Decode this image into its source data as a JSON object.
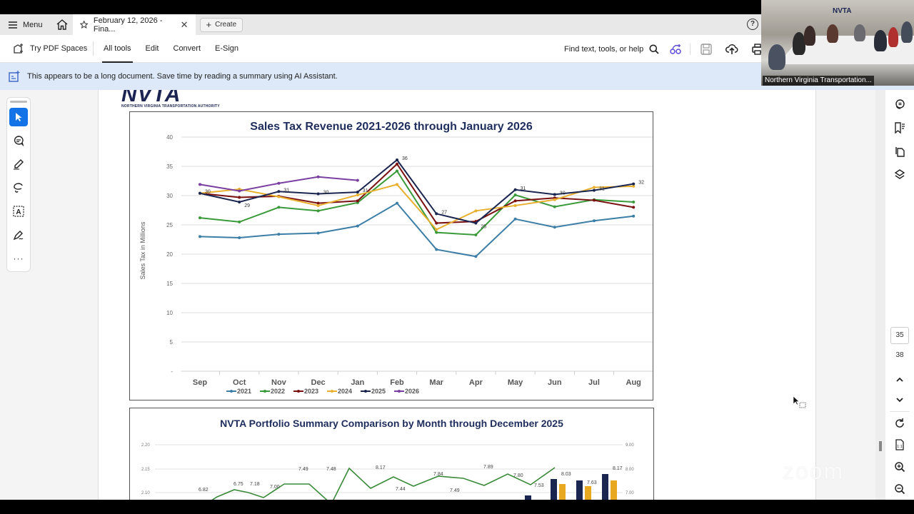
{
  "tabbar": {
    "menu_label": "Menu",
    "doc_tab_title": "February 12, 2026 - Fina...",
    "create_label": "Create",
    "help_glyph": "?"
  },
  "toolbar": {
    "try_spaces": "Try PDF Spaces",
    "tabs": [
      {
        "label": "All tools",
        "active": true
      },
      {
        "label": "Edit"
      },
      {
        "label": "Convert"
      },
      {
        "label": "E-Sign"
      }
    ],
    "find_label": "Find text, tools, or help"
  },
  "banner": {
    "text": "This appears to be a long document. Save time by reading a summary using AI Assistant."
  },
  "document": {
    "logo_text": "NVTA",
    "logo_subtitle": "NORTHERN VIRGINIA TRANSPORTATION AUTHORITY"
  },
  "page_nav": {
    "current_page": "35",
    "total_pages": "38"
  },
  "video": {
    "participant_label": "Northern Virginia Transportation...",
    "wall_logo": "NVTA"
  },
  "watermark": "zoom",
  "colors": {
    "2021": "#3d7ea6",
    "2022": "#3a9a3a",
    "2023": "#7a1010",
    "2024": "#e8b030",
    "2025": "#1a2550",
    "2026": "#7a3fa0",
    "accent": "#1473e6",
    "banner_bg": "#dde9f8"
  },
  "chart_data": [
    {
      "type": "line",
      "title": "Sales Tax Revenue 2021-2026 through January 2026",
      "xlabel": "",
      "ylabel": "Sales Tax in Millions",
      "ylim": [
        0,
        40
      ],
      "yticks": [
        "-",
        "5",
        "10",
        "15",
        "20",
        "25",
        "30",
        "35",
        "40"
      ],
      "grid": true,
      "legend_position": "bottom",
      "categories": [
        "Sep",
        "Oct",
        "Nov",
        "Dec",
        "Jan",
        "Feb",
        "Mar",
        "Apr",
        "May",
        "Jun",
        "Jul",
        "Aug"
      ],
      "series": [
        {
          "name": "2021",
          "values": [
            23.0,
            22.8,
            23.4,
            23.6,
            24.8,
            28.7,
            20.8,
            19.6,
            26.0,
            24.6,
            25.7,
            26.5
          ]
        },
        {
          "name": "2022",
          "values": [
            26.2,
            25.5,
            28.0,
            27.4,
            28.8,
            34.2,
            23.7,
            23.3,
            30.1,
            28.1,
            29.3,
            28.9
          ]
        },
        {
          "name": "2023",
          "values": [
            30.4,
            29.7,
            29.9,
            28.7,
            29.1,
            35.4,
            25.3,
            25.6,
            29.1,
            29.6,
            29.2,
            28.0
          ]
        },
        {
          "name": "2024",
          "values": [
            30.4,
            31.1,
            29.8,
            28.3,
            30.1,
            31.9,
            24.2,
            27.4,
            28.3,
            29.3,
            31.4,
            31.6
          ]
        },
        {
          "name": "2025",
          "values": [
            30.4,
            28.9,
            30.7,
            30.3,
            30.6,
            36.1,
            26.9,
            25.3,
            31.0,
            30.2,
            30.9,
            32.0
          ],
          "data_labels": [
            "30",
            "29",
            "31",
            "30",
            "31",
            "36",
            "27",
            "25",
            "31",
            "30",
            "31",
            "32"
          ]
        },
        {
          "name": "2026",
          "values": [
            31.9,
            30.8,
            32.1,
            33.2,
            32.6,
            null,
            null,
            null,
            null,
            null,
            null,
            null
          ]
        }
      ]
    },
    {
      "type": "bar+line",
      "title": "NVTA Portfolio Summary Comparison by Month through December 2025",
      "left_yticks": [
        "2.10",
        "2.15",
        "2.20"
      ],
      "right_yticks": [
        "7.00",
        "8.00",
        "9.00"
      ],
      "line_labels": [
        "6.82",
        "6.75",
        "7.18",
        "7.00",
        "7.49",
        "7.48",
        "8.17",
        "7.44",
        "7.84",
        "7.49",
        "7.89",
        "7.80",
        "7.53",
        "8.03",
        "7.63",
        "8.17"
      ],
      "note": "Chart partially visible (cropped at bottom of viewport)"
    }
  ]
}
